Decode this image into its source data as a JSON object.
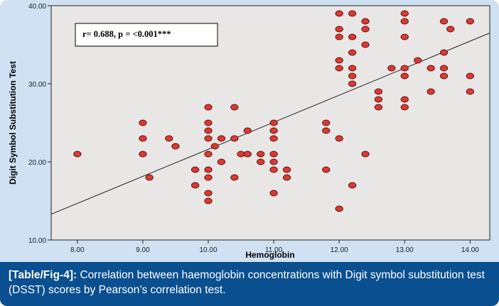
{
  "caption": {
    "ref": "[Table/Fig-4]:",
    "text": "Correlation between haemoglobin concentrations with Digit symbol substitution test (DSST) scores by Pearson’s correlation test."
  },
  "colors": {
    "background": "#cfe1f2",
    "plot_area": "#e9e7e5",
    "point_fill": "#d93a34",
    "point_stroke": "#5a0d0b",
    "caption_bg": "#0a4f8f",
    "caption_text": "#ffffff"
  },
  "chart_data": {
    "type": "scatter",
    "annotation": "r= 0.688, p = <0.001***",
    "xlabel": "Hemoglobin",
    "ylabel": "Digit Symbol Substitution Test",
    "xlim": [
      7.6,
      14.3
    ],
    "ylim": [
      10,
      40
    ],
    "x_ticks": [
      "8.00",
      "9.00",
      "10.00",
      "11.00",
      "12.00",
      "13.00",
      "14.00"
    ],
    "x_tick_values": [
      8,
      9,
      10,
      11,
      12,
      13,
      14
    ],
    "y_ticks": [
      "10.00",
      "20.00",
      "30.00",
      "40.00"
    ],
    "y_tick_values": [
      10,
      20,
      30,
      40
    ],
    "grid": false,
    "fit_line": {
      "x": [
        7.6,
        14.3
      ],
      "y": [
        13.3,
        36.5
      ]
    },
    "points": [
      {
        "x": 8.0,
        "y": 21
      },
      {
        "x": 9.0,
        "y": 25
      },
      {
        "x": 9.0,
        "y": 23
      },
      {
        "x": 9.0,
        "y": 21
      },
      {
        "x": 9.1,
        "y": 18
      },
      {
        "x": 9.4,
        "y": 23
      },
      {
        "x": 9.5,
        "y": 22
      },
      {
        "x": 9.8,
        "y": 19
      },
      {
        "x": 9.8,
        "y": 17
      },
      {
        "x": 10.0,
        "y": 27
      },
      {
        "x": 10.0,
        "y": 25
      },
      {
        "x": 10.0,
        "y": 24
      },
      {
        "x": 10.0,
        "y": 23
      },
      {
        "x": 10.0,
        "y": 21
      },
      {
        "x": 10.0,
        "y": 19
      },
      {
        "x": 10.0,
        "y": 18
      },
      {
        "x": 10.0,
        "y": 16
      },
      {
        "x": 10.0,
        "y": 15
      },
      {
        "x": 10.1,
        "y": 22
      },
      {
        "x": 10.2,
        "y": 23
      },
      {
        "x": 10.2,
        "y": 20
      },
      {
        "x": 10.4,
        "y": 27
      },
      {
        "x": 10.4,
        "y": 23
      },
      {
        "x": 10.4,
        "y": 18
      },
      {
        "x": 10.5,
        "y": 21
      },
      {
        "x": 10.6,
        "y": 24
      },
      {
        "x": 10.6,
        "y": 21
      },
      {
        "x": 10.8,
        "y": 21
      },
      {
        "x": 10.8,
        "y": 20
      },
      {
        "x": 11.0,
        "y": 25
      },
      {
        "x": 11.0,
        "y": 24
      },
      {
        "x": 11.0,
        "y": 23
      },
      {
        "x": 11.0,
        "y": 21
      },
      {
        "x": 11.0,
        "y": 20
      },
      {
        "x": 11.0,
        "y": 19
      },
      {
        "x": 11.0,
        "y": 16
      },
      {
        "x": 11.2,
        "y": 19
      },
      {
        "x": 11.2,
        "y": 18
      },
      {
        "x": 11.8,
        "y": 25
      },
      {
        "x": 11.8,
        "y": 24
      },
      {
        "x": 11.8,
        "y": 19
      },
      {
        "x": 12.0,
        "y": 39
      },
      {
        "x": 12.0,
        "y": 37
      },
      {
        "x": 12.0,
        "y": 36
      },
      {
        "x": 12.0,
        "y": 33
      },
      {
        "x": 12.0,
        "y": 32
      },
      {
        "x": 12.0,
        "y": 23
      },
      {
        "x": 12.0,
        "y": 14
      },
      {
        "x": 12.2,
        "y": 39
      },
      {
        "x": 12.2,
        "y": 36
      },
      {
        "x": 12.2,
        "y": 34
      },
      {
        "x": 12.2,
        "y": 32
      },
      {
        "x": 12.2,
        "y": 31
      },
      {
        "x": 12.2,
        "y": 30
      },
      {
        "x": 12.2,
        "y": 17
      },
      {
        "x": 12.4,
        "y": 38
      },
      {
        "x": 12.4,
        "y": 37
      },
      {
        "x": 12.4,
        "y": 35
      },
      {
        "x": 12.4,
        "y": 21
      },
      {
        "x": 12.6,
        "y": 29
      },
      {
        "x": 12.6,
        "y": 28
      },
      {
        "x": 12.6,
        "y": 27
      },
      {
        "x": 12.8,
        "y": 32
      },
      {
        "x": 13.0,
        "y": 39
      },
      {
        "x": 13.0,
        "y": 38
      },
      {
        "x": 13.0,
        "y": 36
      },
      {
        "x": 13.0,
        "y": 32
      },
      {
        "x": 13.0,
        "y": 31
      },
      {
        "x": 13.0,
        "y": 28
      },
      {
        "x": 13.0,
        "y": 27
      },
      {
        "x": 13.2,
        "y": 33
      },
      {
        "x": 13.4,
        "y": 32
      },
      {
        "x": 13.4,
        "y": 29
      },
      {
        "x": 13.6,
        "y": 38
      },
      {
        "x": 13.6,
        "y": 34
      },
      {
        "x": 13.6,
        "y": 32
      },
      {
        "x": 13.6,
        "y": 31
      },
      {
        "x": 13.7,
        "y": 37
      },
      {
        "x": 14.0,
        "y": 38
      },
      {
        "x": 14.0,
        "y": 31
      },
      {
        "x": 14.0,
        "y": 29
      }
    ]
  }
}
